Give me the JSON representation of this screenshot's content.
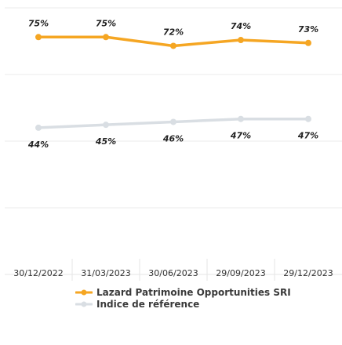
{
  "chart_data": {
    "type": "line",
    "categories": [
      "30/12/2022",
      "31/03/2023",
      "30/06/2023",
      "29/09/2023",
      "29/12/2023"
    ],
    "series": [
      {
        "name": "Lazard Patrimoine Opportunities SRI",
        "values": [
          75,
          75,
          72,
          74,
          73
        ],
        "labels": [
          "75%",
          "75%",
          "72%",
          "74%",
          "73%"
        ],
        "color": "#f5a623"
      },
      {
        "name": "Indice de référence",
        "values": [
          44,
          45,
          46,
          47,
          47
        ],
        "labels": [
          "44%",
          "45%",
          "46%",
          "47%",
          "47%"
        ],
        "color": "#d9dee3"
      }
    ],
    "ylim": [
      0,
      85
    ],
    "grid": true,
    "legend": "bottom"
  }
}
